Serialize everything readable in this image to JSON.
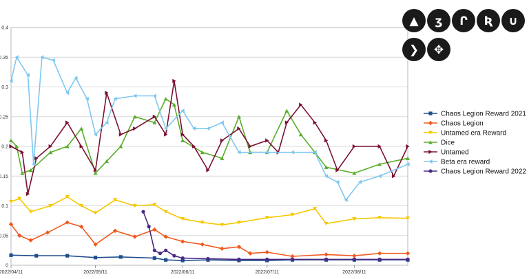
{
  "chart_data": {
    "type": "line",
    "title": "",
    "xlabel": "",
    "ylabel": "",
    "ylim": [
      0,
      0.4
    ],
    "y_ticks": [
      "0",
      "0.05",
      "0.1",
      "0.15",
      "0.2",
      "0.25",
      "0.3",
      "0.35",
      "0.4"
    ],
    "x_range": [
      "2022-04-11",
      "2022-08-30"
    ],
    "x_ticks": [
      "2022/04/11",
      "2022/05/11",
      "2022/06/11",
      "2022/07/11",
      "2022/08/11"
    ],
    "grid": "horizontal",
    "legend_position": "right",
    "series": [
      {
        "name": "Chaos Legion Reward 2021",
        "color": "#1f4e8c",
        "marker": "square",
        "points": [
          [
            "2022-04-11",
            0.017
          ],
          [
            "2022-04-20",
            0.016
          ],
          [
            "2022-05-01",
            0.016
          ],
          [
            "2022-05-11",
            0.013
          ],
          [
            "2022-05-20",
            0.014
          ],
          [
            "2022-06-01",
            0.012
          ],
          [
            "2022-06-05",
            0.009
          ],
          [
            "2022-06-11",
            0.008
          ],
          [
            "2022-06-20",
            0.009
          ],
          [
            "2022-07-01",
            0.008
          ],
          [
            "2022-07-11",
            0.008
          ],
          [
            "2022-07-20",
            0.009
          ],
          [
            "2022-08-01",
            0.009
          ],
          [
            "2022-08-11",
            0.009
          ],
          [
            "2022-08-20",
            0.009
          ],
          [
            "2022-08-30",
            0.009
          ]
        ]
      },
      {
        "name": "Chaos Legion",
        "color": "#f05a1e",
        "marker": "diamond",
        "points": [
          [
            "2022-04-11",
            0.069
          ],
          [
            "2022-04-14",
            0.05
          ],
          [
            "2022-04-18",
            0.042
          ],
          [
            "2022-04-24",
            0.055
          ],
          [
            "2022-05-01",
            0.072
          ],
          [
            "2022-05-06",
            0.065
          ],
          [
            "2022-05-11",
            0.035
          ],
          [
            "2022-05-18",
            0.058
          ],
          [
            "2022-05-25",
            0.048
          ],
          [
            "2022-06-01",
            0.06
          ],
          [
            "2022-06-05",
            0.048
          ],
          [
            "2022-06-11",
            0.04
          ],
          [
            "2022-06-18",
            0.035
          ],
          [
            "2022-06-25",
            0.028
          ],
          [
            "2022-07-01",
            0.031
          ],
          [
            "2022-07-05",
            0.02
          ],
          [
            "2022-07-11",
            0.022
          ],
          [
            "2022-07-20",
            0.015
          ],
          [
            "2022-08-01",
            0.018
          ],
          [
            "2022-08-11",
            0.016
          ],
          [
            "2022-08-20",
            0.02
          ],
          [
            "2022-08-30",
            0.02
          ]
        ]
      },
      {
        "name": "Untamed era Reward",
        "color": "#f5c800",
        "marker": "triangle-down",
        "points": [
          [
            "2022-04-11",
            0.107
          ],
          [
            "2022-04-14",
            0.112
          ],
          [
            "2022-04-18",
            0.09
          ],
          [
            "2022-04-25",
            0.1
          ],
          [
            "2022-05-01",
            0.115
          ],
          [
            "2022-05-06",
            0.1
          ],
          [
            "2022-05-11",
            0.088
          ],
          [
            "2022-05-18",
            0.11
          ],
          [
            "2022-05-25",
            0.1
          ],
          [
            "2022-06-01",
            0.102
          ],
          [
            "2022-06-05",
            0.09
          ],
          [
            "2022-06-11",
            0.078
          ],
          [
            "2022-06-18",
            0.072
          ],
          [
            "2022-06-25",
            0.068
          ],
          [
            "2022-07-01",
            0.072
          ],
          [
            "2022-07-11",
            0.08
          ],
          [
            "2022-07-20",
            0.085
          ],
          [
            "2022-07-28",
            0.095
          ],
          [
            "2022-08-01",
            0.07
          ],
          [
            "2022-08-11",
            0.078
          ],
          [
            "2022-08-20",
            0.08
          ],
          [
            "2022-08-30",
            0.079
          ]
        ]
      },
      {
        "name": "Dice",
        "color": "#5aac2a",
        "marker": "triangle-up",
        "points": [
          [
            "2022-04-11",
            0.21
          ],
          [
            "2022-04-13",
            0.2
          ],
          [
            "2022-04-15",
            0.155
          ],
          [
            "2022-04-18",
            0.16
          ],
          [
            "2022-04-25",
            0.19
          ],
          [
            "2022-05-01",
            0.2
          ],
          [
            "2022-05-06",
            0.23
          ],
          [
            "2022-05-11",
            0.155
          ],
          [
            "2022-05-15",
            0.175
          ],
          [
            "2022-05-20",
            0.2
          ],
          [
            "2022-05-25",
            0.25
          ],
          [
            "2022-06-01",
            0.24
          ],
          [
            "2022-06-05",
            0.28
          ],
          [
            "2022-06-08",
            0.27
          ],
          [
            "2022-06-11",
            0.21
          ],
          [
            "2022-06-18",
            0.19
          ],
          [
            "2022-06-25",
            0.18
          ],
          [
            "2022-07-01",
            0.25
          ],
          [
            "2022-07-05",
            0.19
          ],
          [
            "2022-07-11",
            0.19
          ],
          [
            "2022-07-18",
            0.26
          ],
          [
            "2022-07-23",
            0.22
          ],
          [
            "2022-07-28",
            0.19
          ],
          [
            "2022-08-01",
            0.165
          ],
          [
            "2022-08-11",
            0.155
          ],
          [
            "2022-08-20",
            0.17
          ],
          [
            "2022-08-30",
            0.18
          ]
        ]
      },
      {
        "name": "Untamed",
        "color": "#7a1030",
        "marker": "triangle-right",
        "points": [
          [
            "2022-04-11",
            0.2
          ],
          [
            "2022-04-15",
            0.19
          ],
          [
            "2022-04-17",
            0.12
          ],
          [
            "2022-04-20",
            0.18
          ],
          [
            "2022-04-25",
            0.2
          ],
          [
            "2022-05-01",
            0.24
          ],
          [
            "2022-05-06",
            0.2
          ],
          [
            "2022-05-11",
            0.16
          ],
          [
            "2022-05-15",
            0.29
          ],
          [
            "2022-05-20",
            0.22
          ],
          [
            "2022-05-25",
            0.23
          ],
          [
            "2022-06-01",
            0.25
          ],
          [
            "2022-06-05",
            0.22
          ],
          [
            "2022-06-08",
            0.31
          ],
          [
            "2022-06-11",
            0.22
          ],
          [
            "2022-06-15",
            0.2
          ],
          [
            "2022-06-20",
            0.16
          ],
          [
            "2022-06-25",
            0.21
          ],
          [
            "2022-07-01",
            0.23
          ],
          [
            "2022-07-05",
            0.2
          ],
          [
            "2022-07-11",
            0.21
          ],
          [
            "2022-07-15",
            0.19
          ],
          [
            "2022-07-18",
            0.24
          ],
          [
            "2022-07-23",
            0.27
          ],
          [
            "2022-07-28",
            0.24
          ],
          [
            "2022-08-01",
            0.21
          ],
          [
            "2022-08-05",
            0.16
          ],
          [
            "2022-08-11",
            0.2
          ],
          [
            "2022-08-20",
            0.2
          ],
          [
            "2022-08-25",
            0.15
          ],
          [
            "2022-08-30",
            0.2
          ]
        ]
      },
      {
        "name": "Beta era reward",
        "color": "#7ec8f0",
        "marker": "triangle-left",
        "points": [
          [
            "2022-04-11",
            0.31
          ],
          [
            "2022-04-13",
            0.35
          ],
          [
            "2022-04-17",
            0.32
          ],
          [
            "2022-04-19",
            0.17
          ],
          [
            "2022-04-22",
            0.35
          ],
          [
            "2022-04-26",
            0.345
          ],
          [
            "2022-05-01",
            0.29
          ],
          [
            "2022-05-04",
            0.315
          ],
          [
            "2022-05-08",
            0.28
          ],
          [
            "2022-05-11",
            0.22
          ],
          [
            "2022-05-15",
            0.24
          ],
          [
            "2022-05-18",
            0.28
          ],
          [
            "2022-05-25",
            0.285
          ],
          [
            "2022-06-01",
            0.285
          ],
          [
            "2022-06-05",
            0.23
          ],
          [
            "2022-06-11",
            0.26
          ],
          [
            "2022-06-15",
            0.23
          ],
          [
            "2022-06-20",
            0.23
          ],
          [
            "2022-06-25",
            0.24
          ],
          [
            "2022-07-01",
            0.19
          ],
          [
            "2022-07-11",
            0.19
          ],
          [
            "2022-07-20",
            0.19
          ],
          [
            "2022-07-28",
            0.19
          ],
          [
            "2022-08-01",
            0.15
          ],
          [
            "2022-08-05",
            0.14
          ],
          [
            "2022-08-08",
            0.11
          ],
          [
            "2022-08-13",
            0.14
          ],
          [
            "2022-08-20",
            0.15
          ],
          [
            "2022-08-30",
            0.17
          ]
        ]
      },
      {
        "name": "Chaos Legion Reward 2022",
        "color": "#4b2a86",
        "marker": "circle",
        "points": [
          [
            "2022-05-28",
            0.09
          ],
          [
            "2022-05-30",
            0.065
          ],
          [
            "2022-06-01",
            0.025
          ],
          [
            "2022-06-03",
            0.02
          ],
          [
            "2022-06-05",
            0.025
          ],
          [
            "2022-06-08",
            0.016
          ],
          [
            "2022-06-11",
            0.012
          ],
          [
            "2022-06-20",
            0.011
          ],
          [
            "2022-07-01",
            0.01
          ],
          [
            "2022-07-11",
            0.01
          ],
          [
            "2022-07-20",
            0.01
          ],
          [
            "2022-08-01",
            0.01
          ],
          [
            "2022-08-11",
            0.01
          ],
          [
            "2022-08-20",
            0.01
          ],
          [
            "2022-08-30",
            0.01
          ]
        ]
      }
    ]
  },
  "icons": {
    "color": "#1a1a1a",
    "glyphs": [
      "▲",
      "ʒ",
      "Ր",
      "Ʀ",
      "∪",
      "❯",
      "✥"
    ],
    "names": [
      "tier-1-icon",
      "tier-2-icon",
      "tier-3-icon",
      "tier-4-icon",
      "tier-5-icon",
      "tier-6-icon",
      "tier-7-icon"
    ]
  }
}
